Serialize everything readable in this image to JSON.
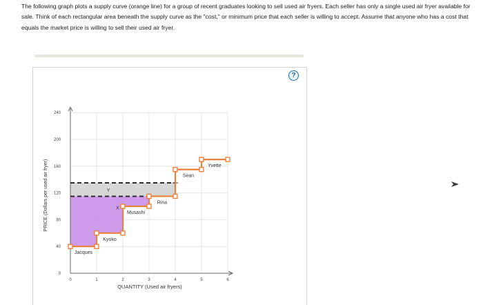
{
  "question": {
    "text": "The following graph plots a supply curve (orange line) for a group of recent graduates looking to sell used air fryers. Each seller has only a single used air fryer available for sale. Think of each rectangular area beneath the supply curve as the \"cost,\" or minimum price that each seller is willing to accept. Assume that anyone who has a cost that equals the market price is willing to sell their used air fryer."
  },
  "help": {
    "label": "?",
    "icon": "help-icon"
  },
  "colors": {
    "supply": "#e8823a",
    "surplus_fill": "#c68ae8",
    "price_band": "#cfcfcf",
    "dashed": "#2b2b2b",
    "grid": "#e4e4e4"
  },
  "chart_data": {
    "type": "line",
    "xlabel": "QUANTITY (Used air fryers)",
    "ylabel": "PRICE (Dollars per used air fryer)",
    "xlim": [
      0,
      6
    ],
    "ylim": [
      0,
      240
    ],
    "x_ticks": [
      "0",
      "1",
      "2",
      "3",
      "4",
      "5",
      "6"
    ],
    "y_ticks": [
      "0",
      "40",
      "80",
      "120",
      "160",
      "200",
      "240"
    ],
    "sellers": [
      {
        "name": "Jacques",
        "quantity_start": 0,
        "quantity_end": 1,
        "cost": 40
      },
      {
        "name": "Kyoko",
        "quantity_start": 1,
        "quantity_end": 2,
        "cost": 60
      },
      {
        "name": "Musashi",
        "quantity_start": 2,
        "quantity_end": 3,
        "cost": 100
      },
      {
        "name": "Rina",
        "quantity_start": 3,
        "quantity_end": 4,
        "cost": 115
      },
      {
        "name": "Sean",
        "quantity_start": 4,
        "quantity_end": 5,
        "cost": 155
      },
      {
        "name": "Yvette",
        "quantity_start": 5,
        "quantity_end": 6,
        "cost": 170
      }
    ],
    "price_lines": [
      {
        "label": "Y",
        "price": 135
      },
      {
        "label": "X",
        "price": 115
      }
    ],
    "shaded_region_label": "X",
    "upper_band_label": "Y"
  }
}
